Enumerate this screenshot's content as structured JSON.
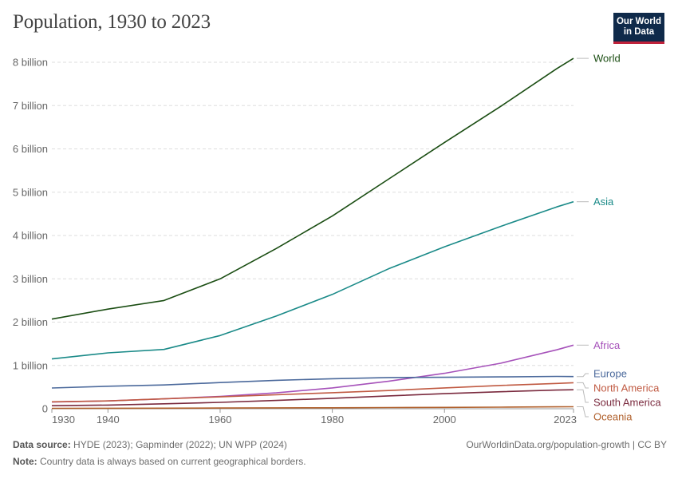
{
  "title": "Population, 1930 to 2023",
  "logo": {
    "line1": "Our World",
    "line2": "in Data"
  },
  "footer": {
    "source_label": "Data source:",
    "source_text": "HYDE (2023); Gapminder (2022); UN WPP (2024)",
    "url_text": "OurWorldinData.org/population-growth | CC BY",
    "note_label": "Note:",
    "note_text": "Country data is always based on current geographical borders."
  },
  "chart_data": {
    "type": "line",
    "title": "Population, 1930 to 2023",
    "xlim": [
      1930,
      2023
    ],
    "ylim": [
      0,
      8000000000
    ],
    "x_ticks": [
      1930,
      1940,
      1960,
      1980,
      2000,
      2023
    ],
    "y_ticks": [
      {
        "value": 0,
        "label": "0"
      },
      {
        "value": 1000000000,
        "label": "1 billion"
      },
      {
        "value": 2000000000,
        "label": "2 billion"
      },
      {
        "value": 3000000000,
        "label": "3 billion"
      },
      {
        "value": 4000000000,
        "label": "4 billion"
      },
      {
        "value": 5000000000,
        "label": "5 billion"
      },
      {
        "value": 6000000000,
        "label": "6 billion"
      },
      {
        "value": 7000000000,
        "label": "7 billion"
      },
      {
        "value": 8000000000,
        "label": "8 billion"
      }
    ],
    "grid": true,
    "legend": "right (end labels)",
    "series": [
      {
        "name": "World",
        "color": "#1a4d12",
        "x": [
          1930,
          1940,
          1950,
          1960,
          1970,
          1980,
          1990,
          2000,
          2010,
          2020,
          2023
        ],
        "y": [
          2070000000,
          2300000000,
          2500000000,
          3000000000,
          3700000000,
          4450000000,
          5300000000,
          6150000000,
          6980000000,
          7850000000,
          8090000000
        ]
      },
      {
        "name": "Asia",
        "color": "#1a8a88",
        "x": [
          1930,
          1940,
          1950,
          1960,
          1970,
          1980,
          1990,
          2000,
          2010,
          2020,
          2023
        ],
        "y": [
          1150000000,
          1290000000,
          1370000000,
          1690000000,
          2140000000,
          2640000000,
          3230000000,
          3740000000,
          4210000000,
          4660000000,
          4780000000
        ]
      },
      {
        "name": "Africa",
        "color": "#a652ba",
        "x": [
          1930,
          1940,
          1950,
          1960,
          1970,
          1980,
          1990,
          2000,
          2010,
          2020,
          2023
        ],
        "y": [
          155000000,
          180000000,
          228000000,
          285000000,
          366000000,
          481000000,
          635000000,
          818000000,
          1050000000,
          1360000000,
          1470000000
        ]
      },
      {
        "name": "Europe",
        "color": "#4c6a9c",
        "x": [
          1930,
          1940,
          1950,
          1960,
          1970,
          1980,
          1990,
          2000,
          2010,
          2020,
          2023
        ],
        "y": [
          480000000,
          520000000,
          550000000,
          605000000,
          657000000,
          694000000,
          721000000,
          726000000,
          736000000,
          746000000,
          742000000
        ]
      },
      {
        "name": "North America",
        "color": "#c05a42",
        "x": [
          1930,
          1940,
          1950,
          1960,
          1970,
          1980,
          1990,
          2000,
          2010,
          2020,
          2023
        ],
        "y": [
          160000000,
          180000000,
          228000000,
          275000000,
          322000000,
          371000000,
          420000000,
          481000000,
          538000000,
          585000000,
          600000000
        ]
      },
      {
        "name": "South America",
        "color": "#7a2a3e",
        "x": [
          1930,
          1940,
          1950,
          1960,
          1970,
          1980,
          1990,
          2000,
          2010,
          2020,
          2023
        ],
        "y": [
          70000000,
          85000000,
          114000000,
          148000000,
          191000000,
          241000000,
          297000000,
          349000000,
          393000000,
          431000000,
          439000000
        ]
      },
      {
        "name": "Oceania",
        "color": "#b0602c",
        "x": [
          1930,
          1940,
          1950,
          1960,
          1970,
          1980,
          1990,
          2000,
          2010,
          2020,
          2023
        ],
        "y": [
          10000000,
          11000000,
          12900000,
          15900000,
          19700000,
          22900000,
          27000000,
          31400000,
          37100000,
          43900000,
          45500000
        ]
      }
    ]
  }
}
